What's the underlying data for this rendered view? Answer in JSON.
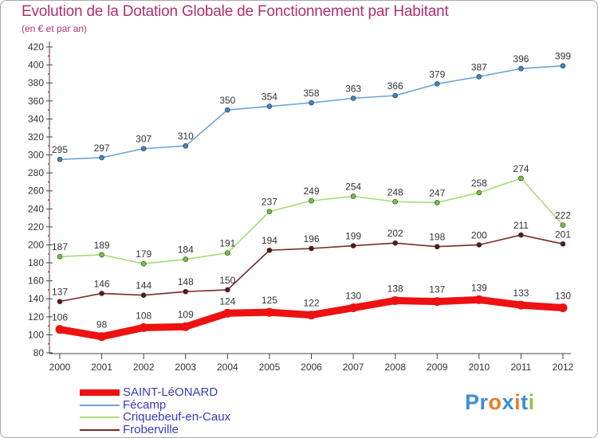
{
  "title": "Evolution de la Dotation Globale de Fonctionnement par Habitant",
  "subtitle": "(en € et par an)",
  "logo": {
    "text": "Proxiti",
    "letters": [
      {
        "ch": "P",
        "color": "#3a8ed8"
      },
      {
        "ch": "r",
        "color": "#3a8ed8"
      },
      {
        "ch": "o",
        "color": "#f07a20"
      },
      {
        "ch": "x",
        "color": "#3a8ed8"
      },
      {
        "ch": "i",
        "color": "#f07a20"
      },
      {
        "ch": "t",
        "color": "#3a8ed8"
      },
      {
        "ch": "i",
        "color": "#8cc63f"
      }
    ]
  },
  "chart_data": {
    "type": "line",
    "title": "Evolution de la Dotation Globale de Fonctionnement par Habitant",
    "subtitle": "(en € et par an)",
    "xlabel": "",
    "ylabel": "",
    "ylim": [
      80,
      420
    ],
    "ytick_step": 20,
    "grid": false,
    "legend_position": "bottom-left",
    "categories": [
      "2000",
      "2001",
      "2002",
      "2003",
      "2004",
      "2005",
      "2006",
      "2007",
      "2008",
      "2009",
      "2010",
      "2011",
      "2012"
    ],
    "series": [
      {
        "name": "Fécamp",
        "color": "#6fa3d4",
        "marker": "#3f86c8",
        "values": [
          295,
          297,
          307,
          310,
          350,
          354,
          358,
          363,
          366,
          379,
          387,
          396,
          399
        ]
      },
      {
        "name": "Criquebeuf-en-Caux",
        "color": "#a6dd74",
        "marker": "#74c43a",
        "values": [
          187,
          189,
          179,
          184,
          191,
          237,
          249,
          254,
          248,
          247,
          258,
          274,
          222
        ]
      },
      {
        "name": "Froberville",
        "color": "#7a2a2a",
        "marker": "#5a1818",
        "values": [
          137,
          146,
          144,
          148,
          150,
          194,
          196,
          199,
          202,
          198,
          200,
          211,
          201
        ]
      },
      {
        "name": "SAINT-LéONARD",
        "color": "#ee1111",
        "marker": "#ee1111",
        "values": [
          106,
          98,
          108,
          109,
          124,
          125,
          122,
          130,
          138,
          137,
          139,
          133,
          130
        ],
        "thick": true
      }
    ],
    "legend_order": [
      "SAINT-LéONARD",
      "Fécamp",
      "Criquebeuf-en-Caux",
      "Froberville"
    ]
  }
}
